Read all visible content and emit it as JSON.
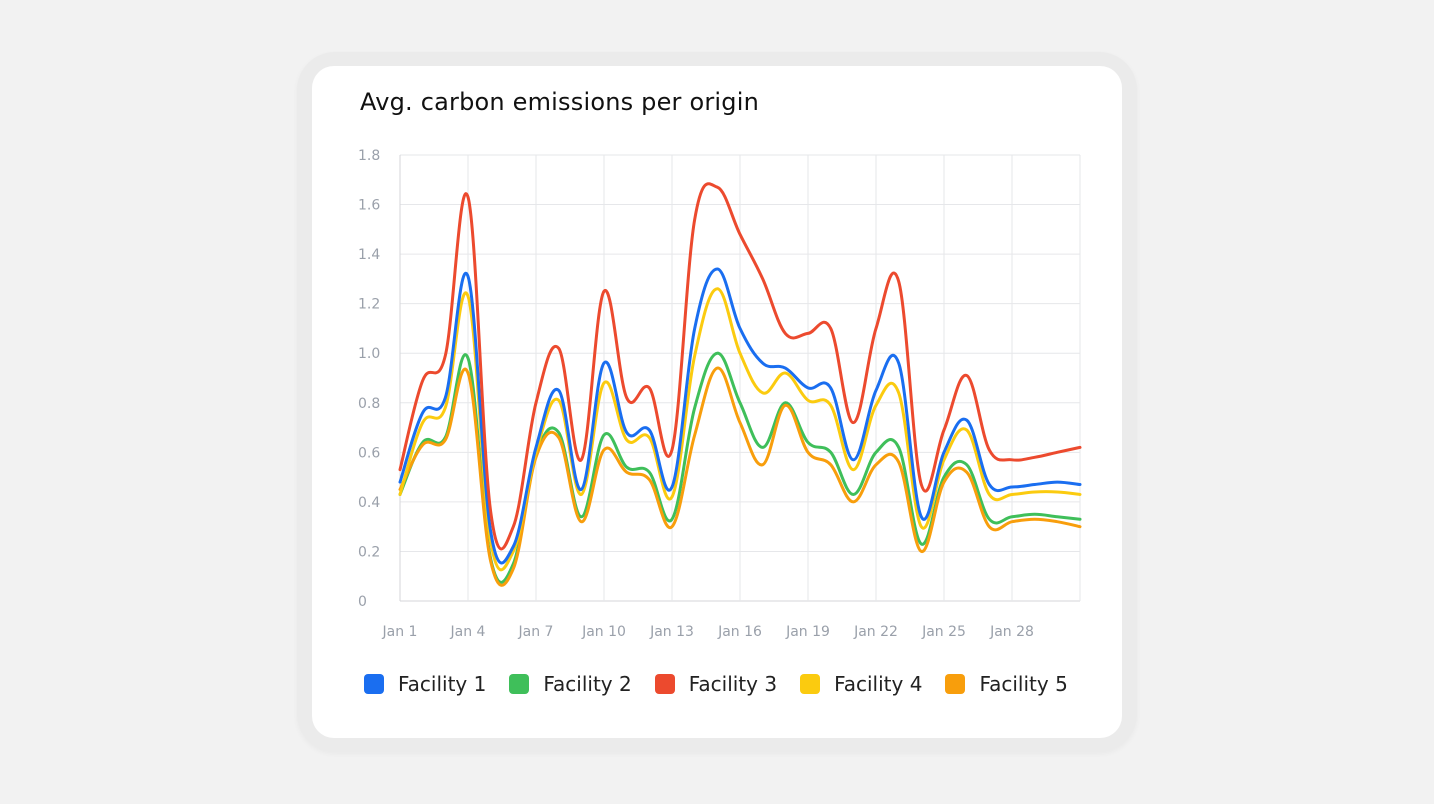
{
  "chart_data": {
    "type": "line",
    "title": "Avg. carbon emissions per origin",
    "xlabel": "",
    "ylabel": "",
    "ylim": [
      0,
      1.8
    ],
    "yticks": [
      "0",
      "0.2",
      "0.4",
      "0.6",
      "0.8",
      "1.0",
      "1.2",
      "1.4",
      "1.6",
      "1.8"
    ],
    "xticks": [
      "Jan 1",
      "Jan 4",
      "Jan 7",
      "Jan 10",
      "Jan 13",
      "Jan 16",
      "Jan 19",
      "Jan 22",
      "Jan 25",
      "Jan 28"
    ],
    "x": [
      "Jan 1",
      "Jan 2",
      "Jan 3",
      "Jan 4",
      "Jan 5",
      "Jan 6",
      "Jan 7",
      "Jan 8",
      "Jan 9",
      "Jan 10",
      "Jan 11",
      "Jan 12",
      "Jan 13",
      "Jan 14",
      "Jan 15",
      "Jan 16",
      "Jan 17",
      "Jan 18",
      "Jan 19",
      "Jan 20",
      "Jan 21",
      "Jan 22",
      "Jan 23",
      "Jan 24",
      "Jan 25",
      "Jan 26",
      "Jan 27",
      "Jan 28",
      "Jan 29",
      "Jan 30",
      "Jan 31"
    ],
    "grid": true,
    "legend_position": "bottom",
    "series": [
      {
        "name": "Facility 1",
        "color": "#1a6ef0",
        "values": [
          0.48,
          0.76,
          0.82,
          1.31,
          0.28,
          0.22,
          0.62,
          0.85,
          0.45,
          0.96,
          0.68,
          0.69,
          0.46,
          1.1,
          1.34,
          1.1,
          0.96,
          0.94,
          0.86,
          0.86,
          0.57,
          0.85,
          0.96,
          0.34,
          0.6,
          0.73,
          0.47,
          0.46,
          0.47,
          0.48,
          0.47
        ]
      },
      {
        "name": "Facility 2",
        "color": "#3fbf5a",
        "values": [
          0.43,
          0.64,
          0.66,
          0.98,
          0.17,
          0.15,
          0.59,
          0.68,
          0.34,
          0.67,
          0.54,
          0.52,
          0.33,
          0.78,
          1.0,
          0.8,
          0.62,
          0.8,
          0.64,
          0.6,
          0.43,
          0.6,
          0.62,
          0.23,
          0.5,
          0.55,
          0.33,
          0.34,
          0.35,
          0.34,
          0.33
        ]
      },
      {
        "name": "Facility 3",
        "color": "#ec4a2e",
        "values": [
          0.53,
          0.89,
          0.99,
          1.63,
          0.36,
          0.3,
          0.8,
          1.02,
          0.57,
          1.25,
          0.82,
          0.86,
          0.61,
          1.54,
          1.67,
          1.48,
          1.3,
          1.08,
          1.08,
          1.1,
          0.72,
          1.1,
          1.29,
          0.47,
          0.69,
          0.91,
          0.61,
          0.57,
          0.58,
          0.6,
          0.62
        ]
      },
      {
        "name": "Facility 4",
        "color": "#fbcb0f",
        "values": [
          0.43,
          0.72,
          0.78,
          1.23,
          0.24,
          0.2,
          0.6,
          0.81,
          0.43,
          0.88,
          0.65,
          0.66,
          0.42,
          0.99,
          1.26,
          1.0,
          0.84,
          0.92,
          0.81,
          0.79,
          0.53,
          0.79,
          0.84,
          0.3,
          0.57,
          0.69,
          0.43,
          0.43,
          0.44,
          0.44,
          0.43
        ]
      },
      {
        "name": "Facility 5",
        "color": "#f89e0c",
        "values": [
          0.45,
          0.63,
          0.65,
          0.92,
          0.16,
          0.13,
          0.58,
          0.66,
          0.32,
          0.61,
          0.52,
          0.49,
          0.3,
          0.67,
          0.94,
          0.72,
          0.55,
          0.79,
          0.6,
          0.55,
          0.4,
          0.55,
          0.56,
          0.2,
          0.48,
          0.52,
          0.3,
          0.32,
          0.33,
          0.32,
          0.3
        ]
      }
    ]
  }
}
